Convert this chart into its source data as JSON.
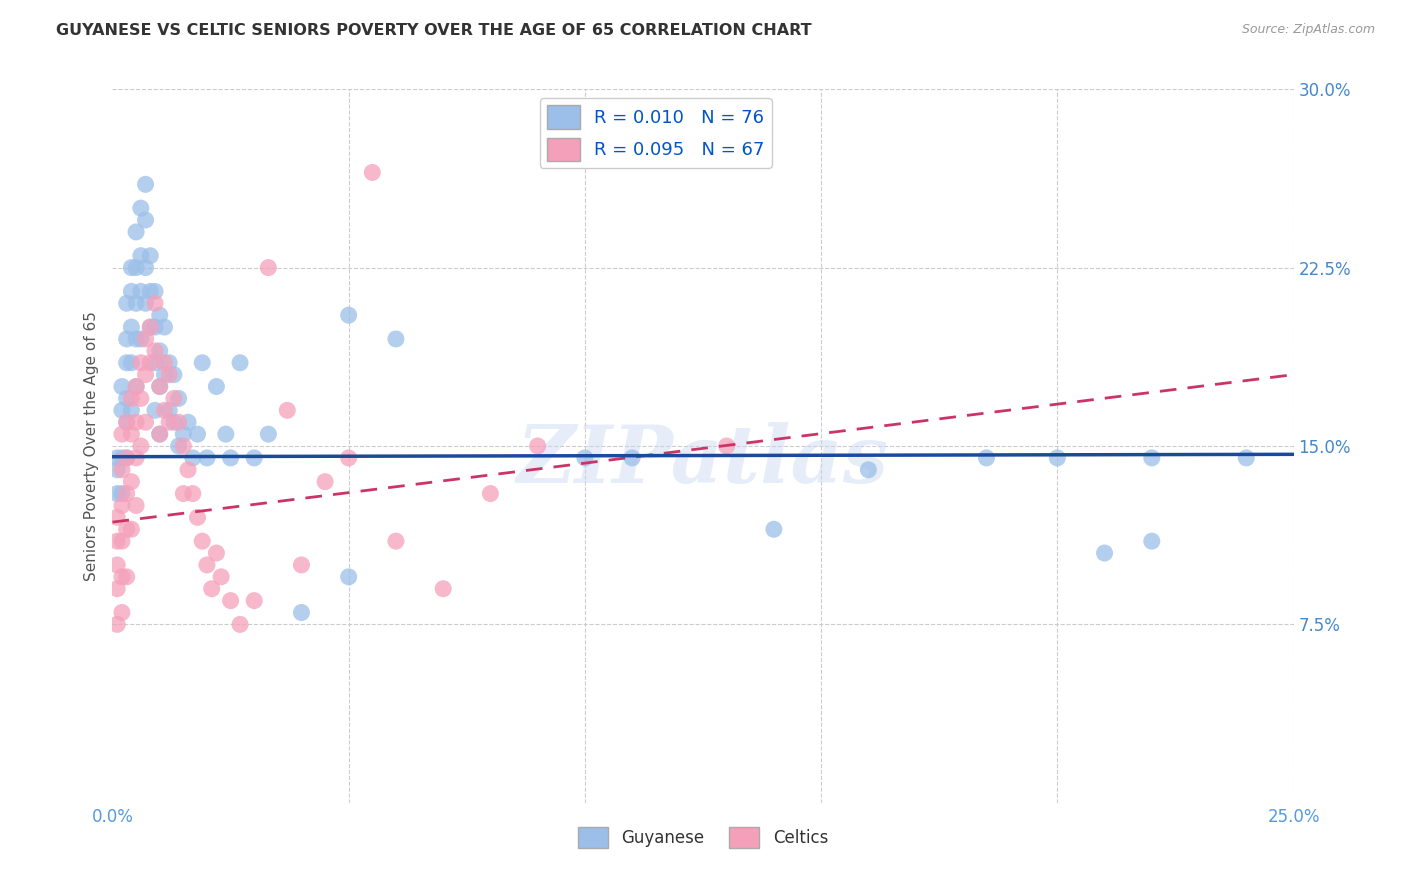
{
  "title": "GUYANESE VS CELTIC SENIORS POVERTY OVER THE AGE OF 65 CORRELATION CHART",
  "source": "Source: ZipAtlas.com",
  "ylabel": "Seniors Poverty Over the Age of 65",
  "xlim": [
    0.0,
    0.25
  ],
  "ylim": [
    0.0,
    0.3
  ],
  "bg_color": "#ffffff",
  "grid_color": "#cccccc",
  "title_color": "#333333",
  "axis_label_color": "#5599dd",
  "right_tick_color": "#4488cc",
  "watermark": "ZIPatlas",
  "guyanese_color": "#9bbfe8",
  "guyanese_line_color": "#1a4a99",
  "celtics_color": "#f5a0bb",
  "celtics_line_color": "#cc3366",
  "guyanese_R": "0.010",
  "guyanese_N": "76",
  "celtics_R": "0.095",
  "celtics_N": "67",
  "guyanese_line": [
    0.0,
    0.25,
    0.1455,
    0.1465
  ],
  "celtics_line": [
    0.0,
    0.25,
    0.118,
    0.18
  ],
  "guyanese_x": [
    0.001,
    0.001,
    0.001,
    0.002,
    0.002,
    0.002,
    0.002,
    0.003,
    0.003,
    0.003,
    0.003,
    0.003,
    0.003,
    0.004,
    0.004,
    0.004,
    0.004,
    0.004,
    0.005,
    0.005,
    0.005,
    0.005,
    0.005,
    0.006,
    0.006,
    0.006,
    0.006,
    0.007,
    0.007,
    0.007,
    0.007,
    0.008,
    0.008,
    0.008,
    0.009,
    0.009,
    0.009,
    0.009,
    0.01,
    0.01,
    0.01,
    0.01,
    0.011,
    0.011,
    0.012,
    0.012,
    0.013,
    0.013,
    0.014,
    0.014,
    0.015,
    0.016,
    0.017,
    0.018,
    0.019,
    0.02,
    0.022,
    0.024,
    0.025,
    0.027,
    0.03,
    0.033,
    0.04,
    0.05,
    0.06,
    0.1,
    0.14,
    0.16,
    0.185,
    0.21,
    0.22,
    0.24,
    0.05,
    0.11,
    0.2,
    0.22
  ],
  "guyanese_y": [
    0.145,
    0.14,
    0.13,
    0.175,
    0.165,
    0.145,
    0.13,
    0.21,
    0.195,
    0.185,
    0.17,
    0.16,
    0.145,
    0.225,
    0.215,
    0.2,
    0.185,
    0.165,
    0.24,
    0.225,
    0.21,
    0.195,
    0.175,
    0.25,
    0.23,
    0.215,
    0.195,
    0.26,
    0.245,
    0.225,
    0.21,
    0.23,
    0.215,
    0.2,
    0.215,
    0.2,
    0.185,
    0.165,
    0.205,
    0.19,
    0.175,
    0.155,
    0.2,
    0.18,
    0.185,
    0.165,
    0.18,
    0.16,
    0.17,
    0.15,
    0.155,
    0.16,
    0.145,
    0.155,
    0.185,
    0.145,
    0.175,
    0.155,
    0.145,
    0.185,
    0.145,
    0.155,
    0.08,
    0.205,
    0.195,
    0.145,
    0.115,
    0.14,
    0.145,
    0.105,
    0.145,
    0.145,
    0.095,
    0.145,
    0.145,
    0.11
  ],
  "celtics_x": [
    0.001,
    0.001,
    0.001,
    0.001,
    0.001,
    0.002,
    0.002,
    0.002,
    0.002,
    0.002,
    0.002,
    0.003,
    0.003,
    0.003,
    0.003,
    0.003,
    0.004,
    0.004,
    0.004,
    0.004,
    0.005,
    0.005,
    0.005,
    0.005,
    0.006,
    0.006,
    0.006,
    0.007,
    0.007,
    0.007,
    0.008,
    0.008,
    0.009,
    0.009,
    0.01,
    0.01,
    0.011,
    0.011,
    0.012,
    0.012,
    0.013,
    0.014,
    0.015,
    0.015,
    0.016,
    0.017,
    0.018,
    0.019,
    0.02,
    0.021,
    0.022,
    0.023,
    0.025,
    0.027,
    0.03,
    0.033,
    0.037,
    0.04,
    0.045,
    0.05,
    0.055,
    0.06,
    0.07,
    0.08,
    0.09,
    0.11,
    0.13
  ],
  "celtics_y": [
    0.12,
    0.11,
    0.1,
    0.09,
    0.075,
    0.155,
    0.14,
    0.125,
    0.11,
    0.095,
    0.08,
    0.16,
    0.145,
    0.13,
    0.115,
    0.095,
    0.17,
    0.155,
    0.135,
    0.115,
    0.175,
    0.16,
    0.145,
    0.125,
    0.185,
    0.17,
    0.15,
    0.195,
    0.18,
    0.16,
    0.2,
    0.185,
    0.21,
    0.19,
    0.175,
    0.155,
    0.185,
    0.165,
    0.18,
    0.16,
    0.17,
    0.16,
    0.15,
    0.13,
    0.14,
    0.13,
    0.12,
    0.11,
    0.1,
    0.09,
    0.105,
    0.095,
    0.085,
    0.075,
    0.085,
    0.225,
    0.165,
    0.1,
    0.135,
    0.145,
    0.265,
    0.11,
    0.09,
    0.13,
    0.15,
    0.28,
    0.15
  ]
}
